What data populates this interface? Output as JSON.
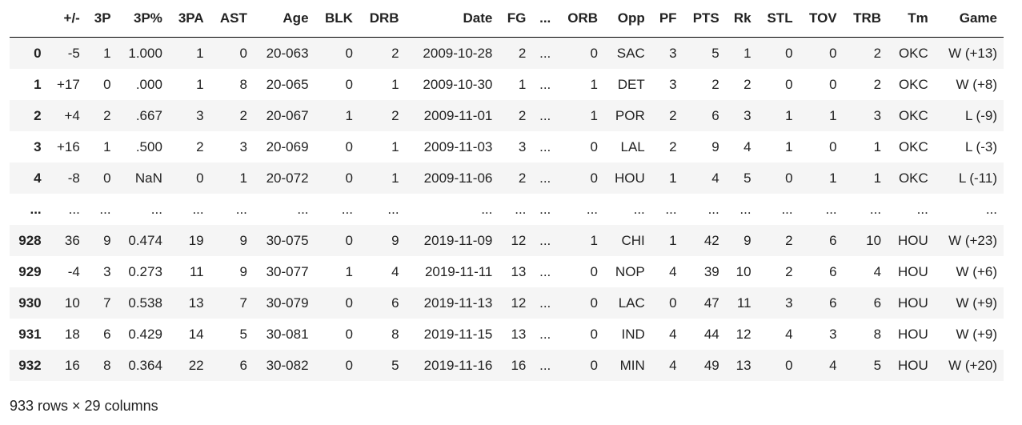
{
  "columns": [
    "",
    "+/-",
    "3P",
    "3P%",
    "3PA",
    "AST",
    "Age",
    "BLK",
    "DRB",
    "Date",
    "FG",
    "...",
    "ORB",
    "Opp",
    "PF",
    "PTS",
    "Rk",
    "STL",
    "TOV",
    "TRB",
    "Tm",
    "Game"
  ],
  "rows": [
    [
      "0",
      "-5",
      "1",
      "1.000",
      "1",
      "0",
      "20-063",
      "0",
      "2",
      "2009-10-28",
      "2",
      "...",
      "0",
      "SAC",
      "3",
      "5",
      "1",
      "0",
      "0",
      "2",
      "OKC",
      "W (+13)"
    ],
    [
      "1",
      "+17",
      "0",
      ".000",
      "1",
      "8",
      "20-065",
      "0",
      "1",
      "2009-10-30",
      "1",
      "...",
      "1",
      "DET",
      "3",
      "2",
      "2",
      "0",
      "0",
      "2",
      "OKC",
      "W (+8)"
    ],
    [
      "2",
      "+4",
      "2",
      ".667",
      "3",
      "2",
      "20-067",
      "1",
      "2",
      "2009-11-01",
      "2",
      "...",
      "1",
      "POR",
      "2",
      "6",
      "3",
      "1",
      "1",
      "3",
      "OKC",
      "L (-9)"
    ],
    [
      "3",
      "+16",
      "1",
      ".500",
      "2",
      "3",
      "20-069",
      "0",
      "1",
      "2009-11-03",
      "3",
      "...",
      "0",
      "LAL",
      "2",
      "9",
      "4",
      "1",
      "0",
      "1",
      "OKC",
      "L (-3)"
    ],
    [
      "4",
      "-8",
      "0",
      "NaN",
      "0",
      "1",
      "20-072",
      "0",
      "1",
      "2009-11-06",
      "2",
      "...",
      "0",
      "HOU",
      "1",
      "4",
      "5",
      "0",
      "1",
      "1",
      "OKC",
      "L (-11)"
    ],
    [
      "...",
      "...",
      "...",
      "...",
      "...",
      "...",
      "...",
      "...",
      "...",
      "...",
      "...",
      "...",
      "...",
      "...",
      "...",
      "...",
      "...",
      "...",
      "...",
      "...",
      "...",
      "..."
    ],
    [
      "928",
      "36",
      "9",
      "0.474",
      "19",
      "9",
      "30-075",
      "0",
      "9",
      "2019-11-09",
      "12",
      "...",
      "1",
      "CHI",
      "1",
      "42",
      "9",
      "2",
      "6",
      "10",
      "HOU",
      "W (+23)"
    ],
    [
      "929",
      "-4",
      "3",
      "0.273",
      "11",
      "9",
      "30-077",
      "1",
      "4",
      "2019-11-11",
      "13",
      "...",
      "0",
      "NOP",
      "4",
      "39",
      "10",
      "2",
      "6",
      "4",
      "HOU",
      "W (+6)"
    ],
    [
      "930",
      "10",
      "7",
      "0.538",
      "13",
      "7",
      "30-079",
      "0",
      "6",
      "2019-11-13",
      "12",
      "...",
      "0",
      "LAC",
      "0",
      "47",
      "11",
      "3",
      "6",
      "6",
      "HOU",
      "W (+9)"
    ],
    [
      "931",
      "18",
      "6",
      "0.429",
      "14",
      "5",
      "30-081",
      "0",
      "8",
      "2019-11-15",
      "13",
      "...",
      "0",
      "IND",
      "4",
      "44",
      "12",
      "4",
      "3",
      "8",
      "HOU",
      "W (+9)"
    ],
    [
      "932",
      "16",
      "8",
      "0.364",
      "22",
      "6",
      "30-082",
      "0",
      "5",
      "2019-11-16",
      "16",
      "...",
      "0",
      "MIN",
      "4",
      "49",
      "13",
      "0",
      "4",
      "5",
      "HOU",
      "W (+20)"
    ]
  ],
  "shape_text": "933 rows × 29 columns",
  "colors": {
    "striped_row": "#f5f5f5",
    "text": "#222222",
    "header_rule": "#000000"
  }
}
